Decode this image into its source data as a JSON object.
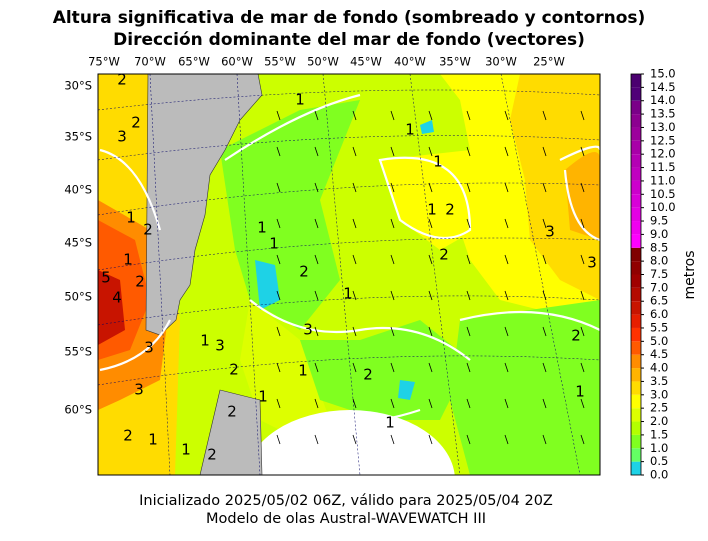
{
  "title": [
    "Altura significativa de mar de fondo (sombreado y contornos)",
    "Dirección dominante del mar de fondo (vectores)"
  ],
  "map": {
    "lon_labels": [
      "75°W",
      "70°W",
      "65°W",
      "60°W",
      "55°W",
      "50°W",
      "45°W",
      "40°W",
      "35°W",
      "30°W",
      "25°W"
    ],
    "lat_labels": [
      "30°S",
      "35°S",
      "40°S",
      "45°S",
      "50°S",
      "55°S",
      "60°S"
    ],
    "contour_labels": [
      "2",
      "3",
      "2",
      "1",
      "1",
      "1",
      "1",
      "2",
      "1",
      "2",
      "1",
      "2",
      "3",
      "3",
      "1",
      "1",
      "4",
      "5",
      "2",
      "3",
      "1",
      "3",
      "2",
      "1",
      "2",
      "1",
      "2",
      "2",
      "1",
      "1",
      "2",
      "1",
      "3",
      "3",
      "2",
      "1",
      "1",
      "2"
    ]
  },
  "colorbar": {
    "label": "metros",
    "lim": [
      0,
      15
    ],
    "ticks": [
      {
        "value": 0,
        "label": "0.0"
      },
      {
        "value": 0.5,
        "label": "0.5"
      },
      {
        "value": 1,
        "label": "1.0"
      },
      {
        "value": 1.5,
        "label": "1.5"
      },
      {
        "value": 2,
        "label": "2.0"
      },
      {
        "value": 2.5,
        "label": "2.5"
      },
      {
        "value": 3,
        "label": "3.0"
      },
      {
        "value": 3.5,
        "label": "3.5"
      },
      {
        "value": 4,
        "label": "4.0"
      },
      {
        "value": 4.5,
        "label": "4.5"
      },
      {
        "value": 5,
        "label": "5.0"
      },
      {
        "value": 5.5,
        "label": "5.5"
      },
      {
        "value": 6,
        "label": "6.0"
      },
      {
        "value": 6.5,
        "label": "6.5"
      },
      {
        "value": 7,
        "label": "7.0"
      },
      {
        "value": 7.5,
        "label": "7.5"
      },
      {
        "value": 8,
        "label": "8.0"
      },
      {
        "value": 8.5,
        "label": "8.5"
      },
      {
        "value": 9,
        "label": "9.0"
      },
      {
        "value": 9.5,
        "label": "9.5"
      },
      {
        "value": 10,
        "label": "10.0"
      },
      {
        "value": 10.5,
        "label": "10.5"
      },
      {
        "value": 11,
        "label": "11.0"
      },
      {
        "value": 11.5,
        "label": "11.5"
      },
      {
        "value": 12,
        "label": "12.0"
      },
      {
        "value": 12.5,
        "label": "12.5"
      },
      {
        "value": 13,
        "label": "13.0"
      },
      {
        "value": 13.5,
        "label": "13.5"
      },
      {
        "value": 14,
        "label": "14.0"
      },
      {
        "value": 14.5,
        "label": "14.5"
      },
      {
        "value": 15,
        "label": "15.0"
      }
    ],
    "colors": [
      "#1ed2e6",
      "#64ff64",
      "#80ff20",
      "#b4ff00",
      "#ddff00",
      "#ffff00",
      "#ffdc00",
      "#ffb400",
      "#ff8c00",
      "#ff5a00",
      "#ff3200",
      "#e61e00",
      "#c81400",
      "#b40a00",
      "#a00000",
      "#900000",
      "#800000",
      "#ff00ff",
      "#f000f0",
      "#e400e4",
      "#d800d8",
      "#cc00cc",
      "#c000c0",
      "#b400b4",
      "#a800a8",
      "#9c009c",
      "#8c0090",
      "#7a0088",
      "#500078"
    ]
  },
  "footer": [
    "Inicializado 2025/05/02 06Z, válido para 2025/05/04 20Z",
    "Modelo de olas Austral-WAVEWATCH III"
  ]
}
